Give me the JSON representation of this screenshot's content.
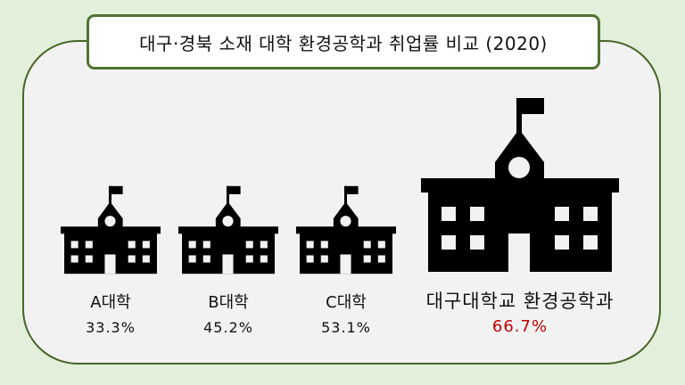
{
  "title": "대구·경북 소재 대학 환경공학과 취업률 비교 (2020)",
  "colors": {
    "background": "#e2efda",
    "panel": "#f2f2f2",
    "border": "#476628",
    "icon": "#000000",
    "highlight": "#c00000"
  },
  "icon": "school-building-icon",
  "chart_data": {
    "type": "bar",
    "title": "대구·경북 소재 대학 환경공학과 취업률 비교 (2020)",
    "categories": [
      "A대학",
      "B대학",
      "C대학",
      "대구대학교 환경공학과"
    ],
    "values": [
      33.3,
      45.2,
      53.1,
      66.7
    ],
    "value_labels": [
      "33.3%",
      "45.2%",
      "53.1%",
      "66.7%"
    ],
    "highlight": "대구대학교 환경공학과"
  }
}
